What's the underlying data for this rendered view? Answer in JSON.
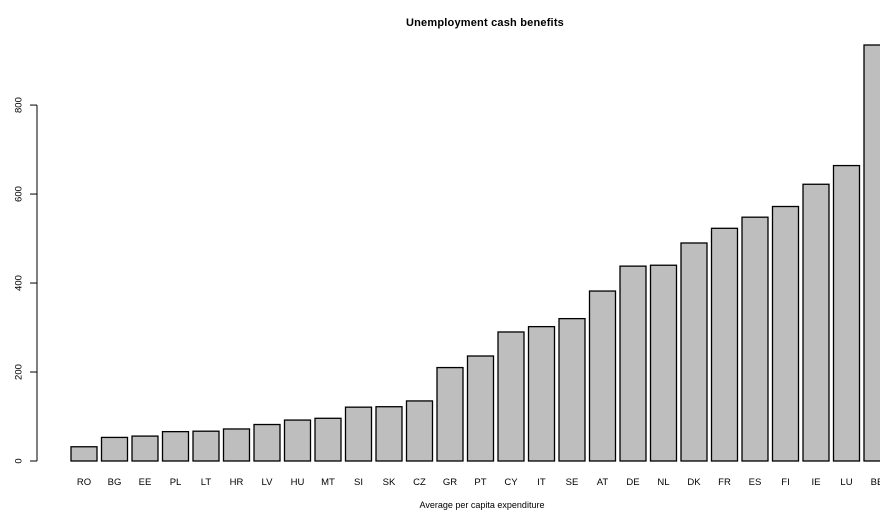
{
  "chart_data": {
    "type": "bar",
    "title": "Unemployment cash benefits",
    "xlabel": "Average per capita expenditure",
    "ylabel": "",
    "ylim": [
      0,
      935
    ],
    "yticks": [
      0,
      200,
      400,
      600,
      800
    ],
    "grid": false,
    "legend": "none",
    "bar_color": "#bebebe",
    "categories": [
      "RO",
      "BG",
      "EE",
      "PL",
      "LT",
      "HR",
      "LV",
      "HU",
      "MT",
      "SI",
      "SK",
      "CZ",
      "GR",
      "PT",
      "CY",
      "IT",
      "SE",
      "AT",
      "DE",
      "NL",
      "DK",
      "FR",
      "ES",
      "FI",
      "IE",
      "LU",
      "BE"
    ],
    "values": [
      32,
      53,
      56,
      66,
      67,
      72,
      82,
      92,
      96,
      121,
      122,
      135,
      210,
      236,
      290,
      302,
      320,
      382,
      438,
      440,
      490,
      523,
      548,
      572,
      622,
      664,
      935
    ]
  }
}
